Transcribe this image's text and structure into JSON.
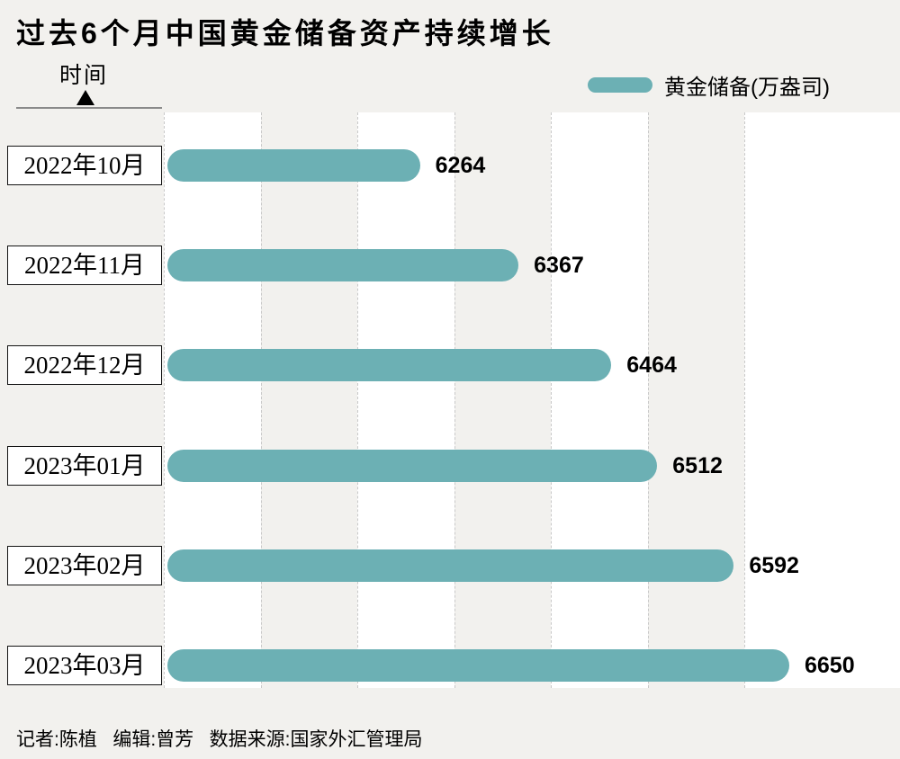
{
  "page": {
    "background": "#f2f1ee"
  },
  "header": {
    "title": "过去6个月中国黄金储备资产持续增长"
  },
  "axis": {
    "label": "时间"
  },
  "legend": {
    "label": "黄金储备(万盎司)",
    "color": "#6cb0b4"
  },
  "chart_data": {
    "type": "bar",
    "orientation": "horizontal",
    "title": "过去6个月中国黄金储备资产持续增长",
    "series_name": "黄金储备(万盎司)",
    "categories": [
      "2022年10月",
      "2022年11月",
      "2022年12月",
      "2023年01月",
      "2023年02月",
      "2023年03月"
    ],
    "values": [
      6264,
      6367,
      6464,
      6512,
      6592,
      6650
    ],
    "xlim": [
      6000,
      6650
    ],
    "bar_color": "#6cb0b4",
    "grid": "dashed-vertical",
    "legend_position": "top-right",
    "ylabel": "时间",
    "xlabel": ""
  },
  "footer": {
    "credits": "记者:陈植   编辑:曾芳   数据来源:国家外汇管理局"
  }
}
